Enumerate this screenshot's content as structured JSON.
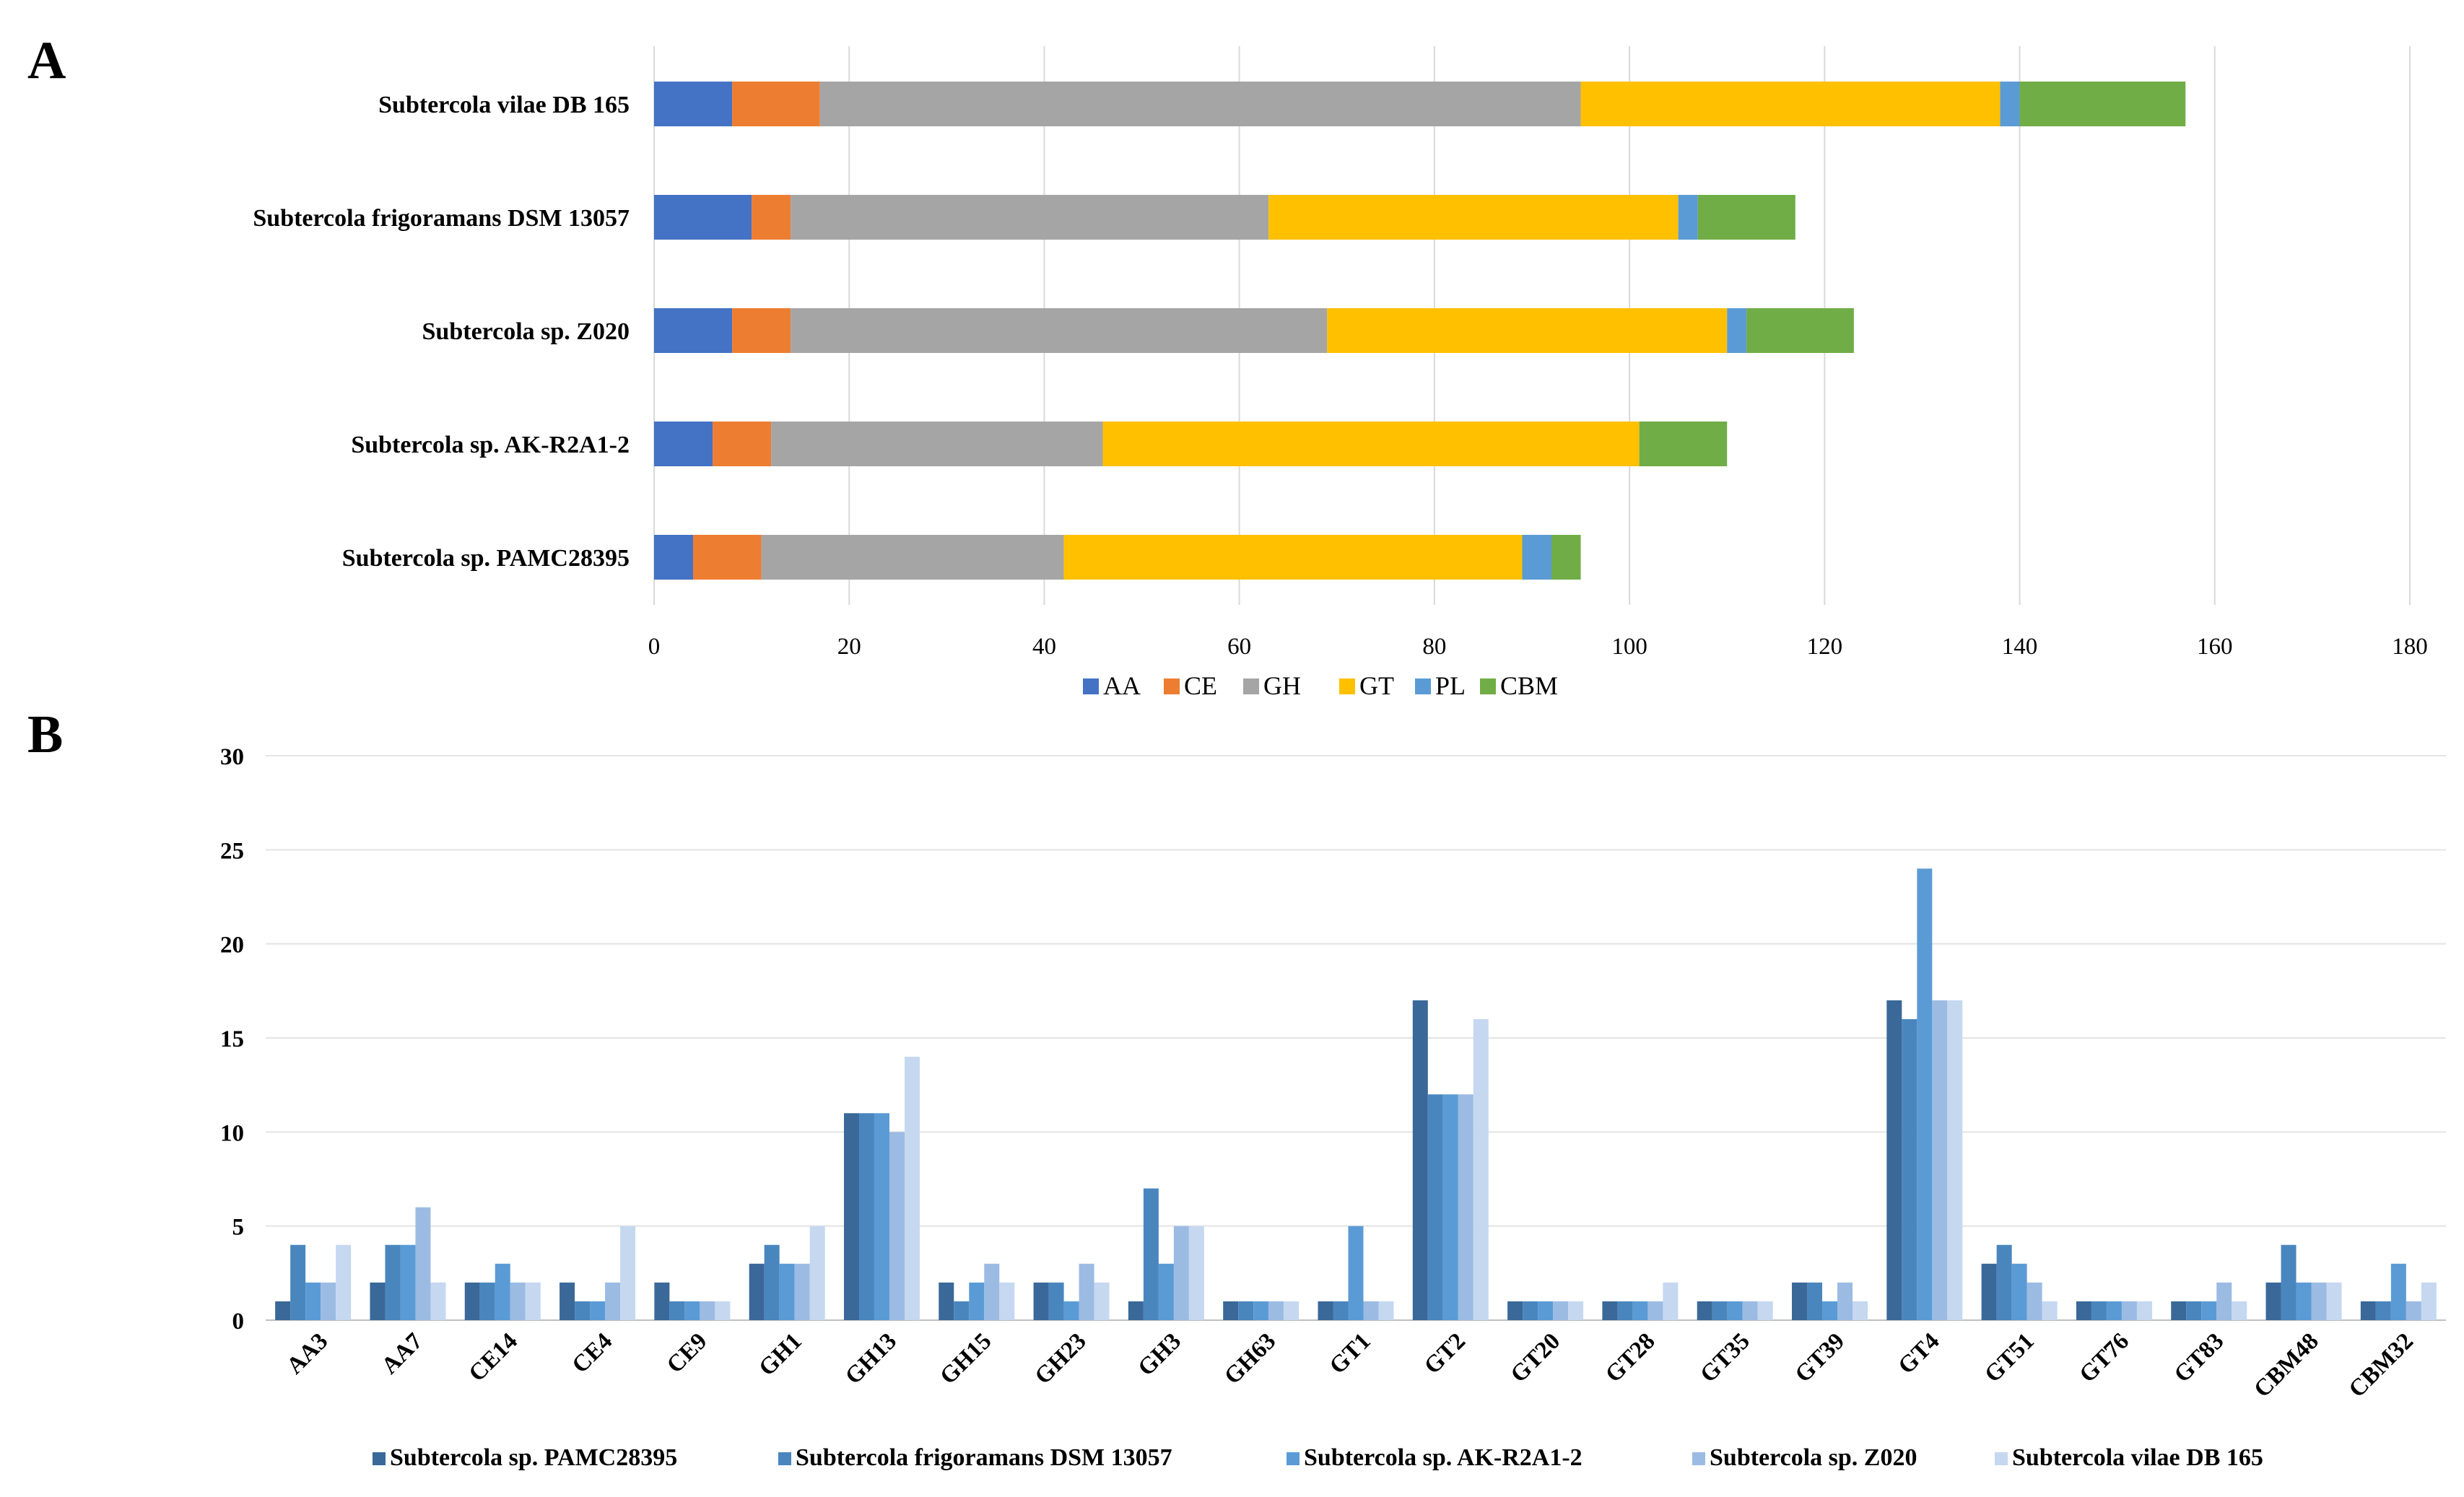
{
  "panels": {
    "a_label": "A",
    "b_label": "B"
  },
  "chart_data": [
    {
      "id": "A",
      "type": "bar",
      "orientation": "horizontal",
      "stacked": true,
      "categories": [
        "Subtercola vilae DB 165",
        "Subtercola frigoramans DSM 13057",
        "Subtercola sp. Z020",
        "Subtercola sp. AK-R2A1-2",
        "Subtercola sp. PAMC28395"
      ],
      "series": [
        {
          "name": "AA",
          "color": "#4472C4",
          "values": [
            8,
            10,
            8,
            6,
            4
          ]
        },
        {
          "name": "CE",
          "color": "#ED7D31",
          "values": [
            9,
            4,
            6,
            6,
            7
          ]
        },
        {
          "name": "GH",
          "color": "#A5A5A5",
          "values": [
            78,
            49,
            55,
            34,
            31
          ]
        },
        {
          "name": "GT",
          "color": "#FFC000",
          "values": [
            43,
            42,
            41,
            55,
            47
          ]
        },
        {
          "name": "PL",
          "color": "#5B9BD5",
          "values": [
            2,
            2,
            2,
            0,
            3
          ]
        },
        {
          "name": "CBM",
          "color": "#70AD47",
          "values": [
            17,
            10,
            11,
            9,
            3
          ]
        }
      ],
      "x_ticks": [
        "0",
        "20",
        "40",
        "60",
        "80",
        "100",
        "120",
        "140",
        "160",
        "180"
      ],
      "xlim": [
        0,
        180
      ],
      "grid": true,
      "legend": "bottom"
    },
    {
      "id": "B",
      "type": "bar",
      "orientation": "vertical",
      "stacked": false,
      "categories": [
        "AA3",
        "AA7",
        "CE14",
        "CE4",
        "CE9",
        "GH1",
        "GH13",
        "GH15",
        "GH23",
        "GH3",
        "GH63",
        "GT1",
        "GT2",
        "GT20",
        "GT28",
        "GT35",
        "GT39",
        "GT4",
        "GT51",
        "GT76",
        "GT83",
        "CBM48",
        "CBM32"
      ],
      "series": [
        {
          "name": "Subtercola sp. PAMC28395",
          "color": "#3A6898",
          "values": [
            1,
            2,
            2,
            2,
            2,
            3,
            11,
            2,
            2,
            1,
            1,
            1,
            17,
            1,
            1,
            1,
            2,
            17,
            3,
            1,
            1,
            2,
            1
          ]
        },
        {
          "name": "Subtercola frigoramans DSM 13057",
          "color": "#4A86BE",
          "values": [
            4,
            4,
            2,
            1,
            1,
            4,
            11,
            1,
            2,
            7,
            1,
            1,
            12,
            1,
            1,
            1,
            2,
            16,
            4,
            1,
            1,
            4,
            1
          ]
        },
        {
          "name": "Subtercola sp. AK-R2A1-2",
          "color": "#5B9BD5",
          "values": [
            2,
            4,
            3,
            1,
            1,
            3,
            11,
            2,
            1,
            3,
            1,
            5,
            12,
            1,
            1,
            1,
            1,
            24,
            3,
            1,
            1,
            2,
            3
          ]
        },
        {
          "name": "Subtercola sp. Z020",
          "color": "#9BBBE3",
          "values": [
            2,
            6,
            2,
            2,
            1,
            3,
            10,
            3,
            3,
            5,
            1,
            1,
            12,
            1,
            1,
            1,
            2,
            17,
            2,
            1,
            2,
            2,
            1
          ]
        },
        {
          "name": "Subtercola vilae DB 165",
          "color": "#C5D8F0",
          "values": [
            4,
            2,
            2,
            5,
            1,
            5,
            14,
            2,
            2,
            5,
            1,
            1,
            16,
            1,
            2,
            1,
            1,
            17,
            1,
            1,
            1,
            2,
            2
          ]
        }
      ],
      "y_ticks": [
        "0",
        "5",
        "10",
        "15",
        "20",
        "25",
        "30"
      ],
      "ylim": [
        0,
        30
      ],
      "grid": true,
      "legend": "bottom"
    }
  ]
}
